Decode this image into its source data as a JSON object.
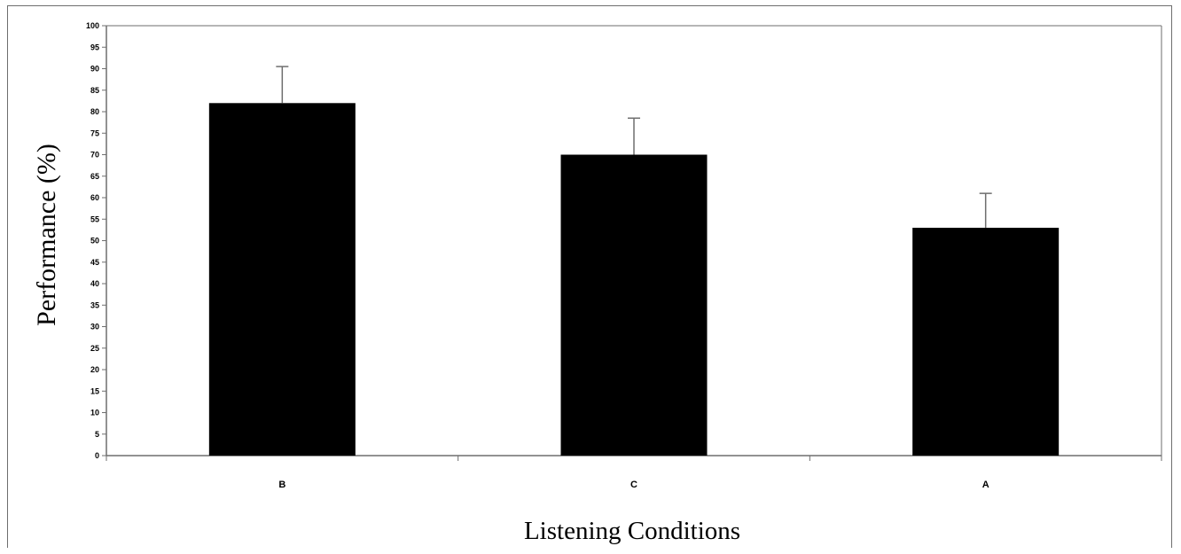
{
  "chart_data": {
    "type": "bar",
    "categories": [
      "B",
      "C",
      "A"
    ],
    "values": [
      82,
      70,
      53
    ],
    "error_bars": [
      8.5,
      8.5,
      8
    ],
    "xlabel": "Listening Conditions",
    "ylabel": "Performance (%)",
    "ylim": [
      0,
      100
    ],
    "y_ticks": [
      0,
      5,
      10,
      15,
      20,
      25,
      30,
      35,
      40,
      45,
      50,
      55,
      60,
      65,
      70,
      75,
      80,
      85,
      90,
      95,
      100
    ],
    "grid": false,
    "legend": "none",
    "colors": {
      "bar": "#000000",
      "axis": "#6e6e6e",
      "frame": "#6e6e6e"
    }
  }
}
